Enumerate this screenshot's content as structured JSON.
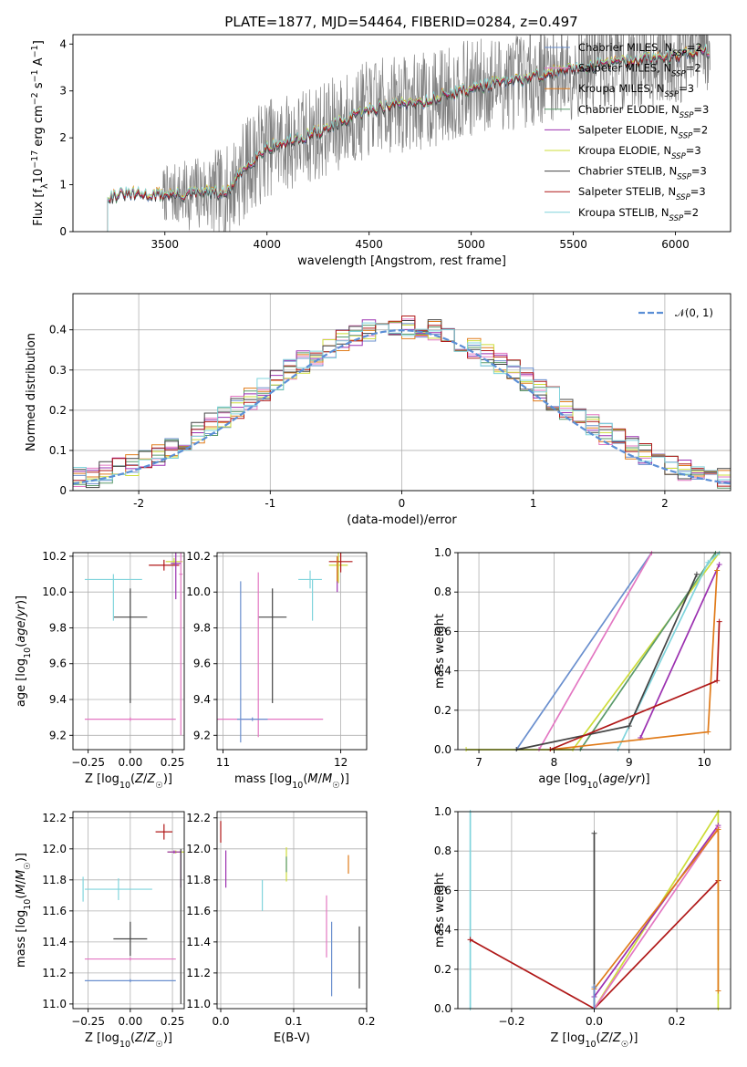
{
  "figure_title": "PLATE=1877, MJD=54464, FIBERID=0284, z=0.497",
  "colors": {
    "data": "#808080",
    "chabrier_miles": "#6a8fce",
    "salpeter_miles": "#e377c2",
    "kroupa_miles": "#e07b1a",
    "chabrier_elodie": "#5a9a6a",
    "salpeter_elodie": "#9b30b0",
    "kroupa_elodie": "#cddc39",
    "chabrier_stelib": "#444444",
    "salpeter_stelib": "#b01818",
    "kroupa_stelib": "#80d4dc"
  },
  "chart_data": [
    {
      "id": "spectrum",
      "type": "line",
      "xlabel": "wavelength [Angstrom, rest frame]",
      "ylabel_parts": [
        "Flux [f",
        "λ",
        "10",
        "−17",
        " erg cm",
        "−2",
        " s",
        "−1",
        " A",
        "−1",
        "]"
      ],
      "xlim": [
        3050,
        6270
      ],
      "ylim": [
        0,
        4.2
      ],
      "xticks": [
        3500,
        4000,
        4500,
        5000,
        5500,
        6000
      ],
      "yticks": [
        0,
        1,
        2,
        3,
        4
      ],
      "observed_range": [
        3490,
        6170
      ],
      "model_start": 3220,
      "continuum": {
        "x": [
          3220,
          3300,
          3400,
          3500,
          3600,
          3700,
          3800,
          3900,
          4000,
          4100,
          4200,
          4300,
          4400,
          4500,
          4600,
          4700,
          4800,
          4900,
          5000,
          5100,
          5200,
          5300,
          5400,
          5500,
          5600,
          5700,
          5800,
          5900,
          6000,
          6100,
          6170
        ],
        "y": [
          0.75,
          0.8,
          0.78,
          0.8,
          0.78,
          0.85,
          0.8,
          1.4,
          1.8,
          1.9,
          2.05,
          2.2,
          2.4,
          2.6,
          2.7,
          2.75,
          2.8,
          2.95,
          3.05,
          3.15,
          3.2,
          3.3,
          3.4,
          3.45,
          3.55,
          3.6,
          3.65,
          3.7,
          3.75,
          3.85,
          3.85
        ]
      },
      "legend": [
        {
          "base": "Chabrier MILES, N",
          "sub": "SSP",
          "tail": "=2",
          "key": "chabrier_miles"
        },
        {
          "base": "Salpeter MILES, N",
          "sub": "SSP",
          "tail": "=2",
          "key": "salpeter_miles"
        },
        {
          "base": "Kroupa MILES, N",
          "sub": "SSP",
          "tail": "=3",
          "key": "kroupa_miles"
        },
        {
          "base": "Chabrier ELODIE, N",
          "sub": "SSP",
          "tail": "=3",
          "key": "chabrier_elodie"
        },
        {
          "base": "Salpeter ELODIE, N",
          "sub": "SSP",
          "tail": "=2",
          "key": "salpeter_elodie"
        },
        {
          "base": "Kroupa ELODIE, N",
          "sub": "SSP",
          "tail": "=3",
          "key": "kroupa_elodie"
        },
        {
          "base": "Chabrier STELIB, N",
          "sub": "SSP",
          "tail": "=3",
          "key": "chabrier_stelib"
        },
        {
          "base": "Salpeter STELIB, N",
          "sub": "SSP",
          "tail": "=3",
          "key": "salpeter_stelib"
        },
        {
          "base": "Kroupa STELIB, N",
          "sub": "SSP",
          "tail": "=2",
          "key": "kroupa_stelib"
        }
      ]
    },
    {
      "id": "residuals",
      "type": "histogram",
      "xlabel": "(data-model)/error",
      "ylabel": "Normed distribution",
      "xlim": [
        -2.5,
        2.5
      ],
      "ylim": [
        0,
        0.49
      ],
      "xticks": [
        -2,
        -1,
        0,
        1,
        2
      ],
      "yticks": [
        0,
        0.1,
        0.2,
        0.3,
        0.4
      ],
      "reference_curve": {
        "label": "𝒩(0, 1)",
        "mean": 0,
        "sigma": 1
      },
      "bin_width": 0.1
    },
    {
      "id": "age_vs_Z",
      "type": "errorbar",
      "xlabel": "Z [log10(Z/Z☉)]",
      "ylabel": "age  [log10(age/yr)]",
      "xlim": [
        -0.34,
        0.32
      ],
      "ylim": [
        9.12,
        10.22
      ],
      "xticks": [
        -0.25,
        0,
        0.25
      ],
      "xticklabels": [
        "−0.25",
        "0.00",
        "0.25"
      ],
      "yticks": [
        9.2,
        9.4,
        9.6,
        9.8,
        10.0,
        10.2
      ],
      "yticklabels": [
        "9.2",
        "9.4",
        "9.6",
        "9.8",
        "10.0",
        "10.2"
      ],
      "points": [
        {
          "x": 0,
          "y": 9.86,
          "xerr": 0.1,
          "yerr": 0.16,
          "yerr_low": 0.48,
          "key": "chabrier_stelib"
        },
        {
          "x": -0.1,
          "y": 10.07,
          "xerr": 0.17,
          "yerr_low": 0.23,
          "yerr": 0.03,
          "key": "kroupa_stelib",
          "xerr_low": 0.17
        },
        {
          "x": 0.0,
          "y": 9.29,
          "xerr": 0.27,
          "yerr": 0.01,
          "key": "salpeter_miles"
        },
        {
          "x": 0.26,
          "y": 10.17,
          "xerr": 0.05,
          "yerr": 0.02,
          "key": "kroupa_elodie"
        },
        {
          "x": 0.2,
          "y": 10.15,
          "xerr": 0.09,
          "yerr": 0.03,
          "key": "salpeter_stelib"
        },
        {
          "x": 0.27,
          "y": 10.16,
          "xerr": 0.03,
          "yerr": 0.2,
          "key": "salpeter_elodie"
        },
        {
          "x": 0.3,
          "y": 10.1,
          "xerr": 0.01,
          "yerr": 0.9,
          "key": "salpeter_miles"
        }
      ]
    },
    {
      "id": "age_vs_mass",
      "type": "errorbar",
      "xlabel": "mass [log10(M/M☉)]",
      "ylabel": "",
      "xlim": [
        10.95,
        12.22
      ],
      "ylim": [
        9.12,
        10.22
      ],
      "xticks": [
        11,
        12
      ],
      "xticklabels": [
        "11",
        "12"
      ],
      "yticks": [
        9.2,
        9.4,
        9.6,
        9.8,
        10.0,
        10.2
      ],
      "yticklabels": [
        "9.2",
        "9.4",
        "9.6",
        "9.8",
        "10.0",
        "10.2"
      ],
      "points": [
        {
          "x": 11.42,
          "y": 9.86,
          "xerr": 0.12,
          "yerr": 0.16,
          "yerr_low": 0.48,
          "key": "chabrier_stelib"
        },
        {
          "x": 11.15,
          "y": 9.86,
          "xerr": 0.0,
          "yerr": 0.2,
          "yerr_low": 0.7,
          "key": "chabrier_miles"
        },
        {
          "x": 11.3,
          "y": 9.29,
          "xerr": 0.55,
          "yerr_up": 0.82,
          "yerr_low": 0.1,
          "key": "salpeter_miles"
        },
        {
          "x": 11.25,
          "y": 9.29,
          "xerr": 0.13,
          "yerr": 0.01,
          "key": "chabrier_miles"
        },
        {
          "x": 11.74,
          "y": 10.07,
          "xerr": 0.1,
          "yerr": 0.05,
          "key": "kroupa_stelib"
        },
        {
          "x": 11.76,
          "y": 10.07,
          "xerr": 0.0,
          "yerr_up": 0.0,
          "yerr_low": 0.23,
          "key": "kroupa_stelib"
        },
        {
          "x": 11.98,
          "y": 10.15,
          "xerr": 0.08,
          "yerr": 0.1,
          "key": "kroupa_elodie"
        },
        {
          "x": 12.0,
          "y": 10.17,
          "xerr": 0.1,
          "yerr": 0.06,
          "key": "salpeter_stelib"
        },
        {
          "x": 11.97,
          "y": 10.1,
          "xerr": 0.0,
          "yerr": 0.1,
          "key": "salpeter_elodie"
        },
        {
          "x": 11.97,
          "y": 10.13,
          "xerr": 0.0,
          "yerr": 0.07,
          "key": "kroupa_miles"
        }
      ]
    },
    {
      "id": "massweight_vs_age",
      "type": "line",
      "xlabel": "age  [log10(age/yr)]",
      "ylabel": "mass weight",
      "xlim": [
        6.72,
        10.35
      ],
      "ylim": [
        0,
        1
      ],
      "xticks": [
        7,
        8,
        9,
        10
      ],
      "yticks": [
        0,
        0.2,
        0.4,
        0.6,
        0.8,
        1.0
      ],
      "yticklabels": [
        "0.0",
        "0.2",
        "0.4",
        "0.6",
        "0.8",
        "1.0"
      ],
      "series": [
        {
          "key": "kroupa_elodie",
          "x": [
            6.83,
            8.25,
            10.2
          ],
          "y": [
            0,
            0,
            1
          ]
        },
        {
          "key": "chabrier_elodie",
          "x": [
            8.35,
            10.15
          ],
          "y": [
            0,
            1
          ]
        },
        {
          "key": "chabrier_miles",
          "x": [
            7.5,
            9.3
          ],
          "y": [
            0,
            1
          ]
        },
        {
          "key": "salpeter_miles",
          "x": [
            7.8,
            9.3
          ],
          "y": [
            0,
            1
          ]
        },
        {
          "key": "kroupa_stelib",
          "x": [
            8.85,
            10.05,
            10.2
          ],
          "y": [
            0,
            0.95,
            1
          ]
        },
        {
          "key": "chabrier_stelib",
          "x": [
            7.5,
            9.0,
            9.9
          ],
          "y": [
            0,
            0.12,
            0.89
          ]
        },
        {
          "key": "salpeter_elodie",
          "x": [
            9.15,
            10.2
          ],
          "y": [
            0.06,
            0.94
          ]
        },
        {
          "key": "kroupa_miles",
          "x": [
            7.95,
            10.05,
            10.17
          ],
          "y": [
            0,
            0.09,
            0.91
          ]
        },
        {
          "key": "salpeter_stelib",
          "x": [
            7.95,
            10.17,
            10.2
          ],
          "y": [
            0,
            0.35,
            0.65
          ]
        }
      ]
    },
    {
      "id": "mass_vs_Z",
      "type": "errorbar",
      "xlabel": "Z [log10(Z/Z☉)]",
      "ylabel": "mass [log10(M/M☉)]",
      "xlim": [
        -0.34,
        0.32
      ],
      "ylim": [
        10.97,
        12.24
      ],
      "xticks": [
        -0.25,
        0,
        0.25
      ],
      "xticklabels": [
        "−0.25",
        "0.00",
        "0.25"
      ],
      "yticks": [
        11.0,
        11.2,
        11.4,
        11.6,
        11.8,
        12.0,
        12.2
      ],
      "yticklabels": [
        "11.0",
        "11.2",
        "11.4",
        "11.6",
        "11.8",
        "12.0",
        "12.2"
      ],
      "points": [
        {
          "x": 0.2,
          "y": 12.11,
          "xerr": 0.05,
          "yerr": 0.05,
          "key": "salpeter_stelib"
        },
        {
          "x": 0.27,
          "y": 11.98,
          "xerr": 0.05,
          "yerr": 0.01,
          "key": "kroupa_elodie"
        },
        {
          "x": 0.26,
          "y": 11.98,
          "xerr": 0.04,
          "yerr": 0.01,
          "key": "salpeter_elodie"
        },
        {
          "x": 0.3,
          "y": 11.87,
          "xerr": 0.0,
          "yerr": 0.12,
          "key": "salpeter_elodie"
        },
        {
          "x": -0.07,
          "y": 11.74,
          "xerr": 0.2,
          "yerr": 0.07,
          "key": "kroupa_stelib"
        },
        {
          "x": -0.28,
          "y": 11.74,
          "xerr": 0.0,
          "yerr": 0.08,
          "key": "kroupa_stelib"
        },
        {
          "x": 0.0,
          "y": 11.42,
          "xerr": 0.1,
          "yerr": 0.11,
          "key": "chabrier_stelib"
        },
        {
          "x": 0.0,
          "y": 11.29,
          "xerr": 0.27,
          "yerr": 0.01,
          "key": "salpeter_miles"
        },
        {
          "x": 0.0,
          "y": 11.15,
          "xerr": 0.27,
          "yerr": 0.01,
          "key": "chabrier_miles"
        },
        {
          "x": 0.3,
          "y": 11.5,
          "xerr": 0.0,
          "yerr": 0.5,
          "key": "chabrier_stelib"
        }
      ]
    },
    {
      "id": "mass_vs_ebv",
      "type": "errorbar",
      "xlabel": "E(B-V)",
      "ylabel": "",
      "xlim": [
        -0.005,
        0.2
      ],
      "ylim": [
        10.97,
        12.24
      ],
      "xticks": [
        0.0,
        0.1,
        0.2
      ],
      "xticklabels": [
        "0.0",
        "0.1",
        "0.2"
      ],
      "yticks": [
        11.0,
        11.2,
        11.4,
        11.6,
        11.8,
        12.0,
        12.2
      ],
      "yticklabels": [
        "11.0",
        "11.2",
        "11.4",
        "11.6",
        "11.8",
        "12.0",
        "12.2"
      ],
      "points": [
        {
          "x": 0.0,
          "y": 12.11,
          "xerr": 0.0,
          "yerr": 0.07,
          "key": "salpeter_stelib"
        },
        {
          "x": 0.007,
          "y": 11.87,
          "xerr": 0.0,
          "yerr": 0.12,
          "key": "salpeter_elodie"
        },
        {
          "x": 0.057,
          "y": 11.7,
          "xerr": 0.0,
          "yerr": 0.1,
          "key": "kroupa_stelib"
        },
        {
          "x": 0.09,
          "y": 11.9,
          "xerr": 0.0,
          "yerr": 0.11,
          "key": "kroupa_elodie"
        },
        {
          "x": 0.09,
          "y": 11.9,
          "xerr": 0.0,
          "yerr": 0.05,
          "key": "chabrier_elodie"
        },
        {
          "x": 0.145,
          "y": 11.5,
          "xerr": 0.0,
          "yerr": 0.2,
          "key": "salpeter_miles"
        },
        {
          "x": 0.152,
          "y": 11.29,
          "xerr": 0.0,
          "yerr": 0.24,
          "key": "chabrier_miles"
        },
        {
          "x": 0.175,
          "y": 11.9,
          "xerr": 0.0,
          "yerr": 0.06,
          "key": "kroupa_miles"
        },
        {
          "x": 0.19,
          "y": 11.3,
          "xerr": 0.0,
          "yerr": 0.2,
          "key": "chabrier_stelib"
        }
      ]
    },
    {
      "id": "massweight_vs_Z",
      "type": "line",
      "xlabel": "Z [log10(Z/Z☉)]",
      "ylabel": "mass weight",
      "xlim": [
        -0.33,
        0.33
      ],
      "ylim": [
        0,
        1
      ],
      "xticks": [
        -0.2,
        0,
        0.2
      ],
      "xticklabels": [
        "−0.2",
        "0.0",
        "0.2"
      ],
      "yticks": [
        0,
        0.2,
        0.4,
        0.6,
        0.8,
        1.0
      ],
      "yticklabels": [
        "0.0",
        "0.2",
        "0.4",
        "0.6",
        "0.8",
        "1.0"
      ],
      "series": [
        {
          "key": "kroupa_stelib",
          "x": [
            -0.3,
            -0.3
          ],
          "y": [
            0,
            1
          ]
        },
        {
          "key": "chabrier_stelib",
          "x": [
            0,
            0
          ],
          "y": [
            0,
            0.89
          ]
        },
        {
          "key": "salpeter_stelib",
          "x": [
            -0.3,
            0,
            0.3
          ],
          "y": [
            0.35,
            0,
            0.65
          ]
        },
        {
          "key": "kroupa_elodie",
          "x": [
            0,
            0.3,
            0.3
          ],
          "y": [
            0,
            1,
            0
          ]
        },
        {
          "key": "salpeter_elodie",
          "x": [
            0,
            0.3
          ],
          "y": [
            0.06,
            0.93
          ]
        },
        {
          "key": "salpeter_miles",
          "x": [
            0,
            0.3
          ],
          "y": [
            0,
            0.92
          ]
        },
        {
          "key": "kroupa_miles",
          "x": [
            0,
            0.3,
            0.3
          ],
          "y": [
            0.1,
            0.91,
            0.09
          ]
        },
        {
          "key": "chabrier_miles",
          "x": [
            0,
            0
          ],
          "y": [
            0,
            0.11
          ]
        }
      ]
    }
  ]
}
